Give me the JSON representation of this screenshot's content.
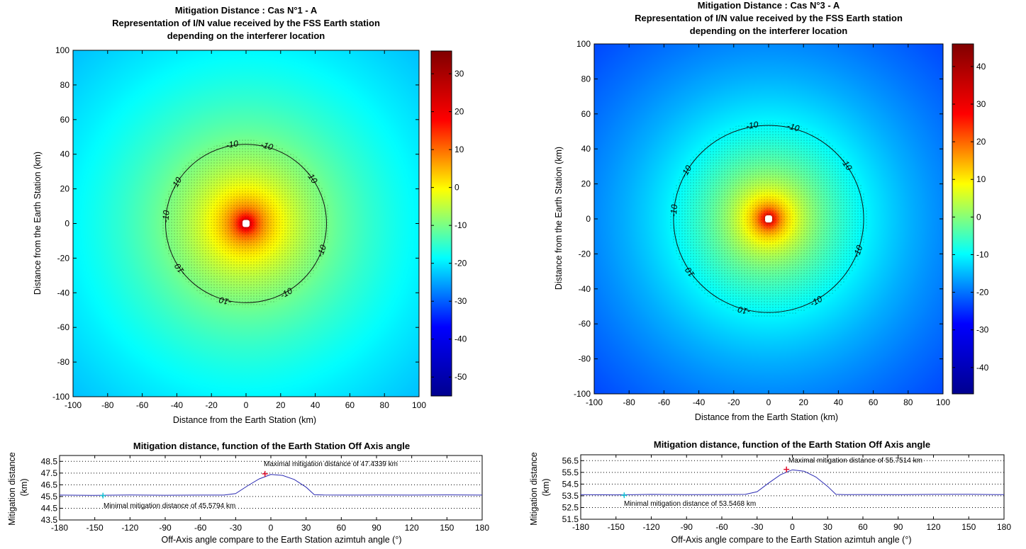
{
  "chart_data": [
    {
      "type": "heatmap",
      "title_lines": [
        "Mitigation Distance   :   Cas N°1 - A",
        "Representation of I/N value received by the FSS Earth station",
        "depending on the interferer location"
      ],
      "xlabel": "Distance from the Earth Station    (km)",
      "ylabel": "Distance from the Earth Station    (km)",
      "xlim": [
        -100,
        100
      ],
      "ylim": [
        -100,
        100
      ],
      "xticks": [
        -100,
        -80,
        -60,
        -40,
        -20,
        0,
        20,
        40,
        60,
        80,
        100
      ],
      "yticks": [
        100,
        80,
        60,
        40,
        20,
        0,
        -20,
        -40,
        -60,
        -80,
        -100
      ],
      "center_value": 36,
      "edge_value": -55,
      "contour_level": -10,
      "contour_label": "-10",
      "contour_radius_km": 46.5,
      "colorbar_ticks": [
        30,
        20,
        10,
        0,
        -10,
        -20,
        -30,
        -40,
        -50
      ],
      "colorbar_range": [
        -55,
        36
      ],
      "colormap": [
        "#00008f",
        "#0000ff",
        "#00ffff",
        "#ffff00",
        "#ff0000",
        "#800000"
      ]
    },
    {
      "type": "heatmap",
      "title_lines": [
        "Mitigation Distance   :   Cas N°3 - A",
        "Representation of I/N value received by the FSS Earth station",
        "depending on the interferer location"
      ],
      "xlabel": "Distance from the Earth Station    (km)",
      "ylabel": "Distance from the Earth Station    (km)",
      "xlim": [
        -100,
        100
      ],
      "ylim": [
        -100,
        100
      ],
      "xticks": [
        -100,
        -80,
        -60,
        -40,
        -20,
        0,
        20,
        40,
        60,
        80,
        100
      ],
      "yticks": [
        100,
        80,
        60,
        40,
        20,
        0,
        -20,
        -40,
        -60,
        -80,
        -100
      ],
      "center_value": 46,
      "edge_value": -47,
      "contour_level": -10,
      "contour_label": "-10",
      "contour_radius_km": 54.5,
      "colorbar_ticks": [
        40,
        30,
        20,
        10,
        0,
        -10,
        -20,
        -30,
        -40
      ],
      "colorbar_range": [
        -47,
        46
      ],
      "colormap": [
        "#00008f",
        "#0000ff",
        "#00ffff",
        "#ffff00",
        "#ff0000",
        "#800000"
      ]
    },
    {
      "type": "line",
      "title": "Mitigation distance, function of the Earth Station Off Axis angle",
      "xlabel": "Off-Axis angle compare to the Earth Station azimtuh angle (°)",
      "ylabel_lines": [
        "Mitigation distance",
        "(km)"
      ],
      "xlim": [
        -180,
        180
      ],
      "ylim": [
        43.5,
        49
      ],
      "xticks": [
        -180,
        -150,
        -120,
        -90,
        -60,
        -30,
        0,
        30,
        60,
        90,
        120,
        150,
        180
      ],
      "yticks": [
        48.5,
        47.5,
        46.5,
        45.5,
        44.5,
        43.5
      ],
      "grid": true,
      "series": [
        {
          "x": [
            -180,
            -150,
            -120,
            -90,
            -60,
            -40,
            -30,
            -20,
            -10,
            0,
            10,
            20,
            30,
            37,
            45,
            60,
            90,
            120,
            150,
            180
          ],
          "y": [
            45.62,
            45.6,
            45.63,
            45.61,
            45.62,
            45.62,
            45.75,
            46.4,
            47.0,
            47.38,
            47.3,
            46.95,
            46.3,
            45.65,
            45.63,
            45.62,
            45.63,
            45.62,
            45.64,
            45.62
          ],
          "color": "#2b2bb3"
        }
      ],
      "max_marker": {
        "x": -5,
        "y": 47.4339,
        "color": "#e0102f"
      },
      "min_marker": {
        "x": -143,
        "y": 45.5794,
        "color": "#18c8d8"
      },
      "max_annotation": "Maximal mitigation distance of 47.4339 km",
      "min_annotation": "Minimal mitigation distance of 45.5794 km"
    },
    {
      "type": "line",
      "title": "Mitigation distance, function of the Earth Station Off Axis angle",
      "xlabel": "Off-Axis angle compare to the Earth Station azimtuh angle (°)",
      "ylabel_lines": [
        "Mitigation distance",
        "(km)"
      ],
      "xlim": [
        -180,
        180
      ],
      "ylim": [
        51.5,
        57
      ],
      "xticks": [
        -180,
        -150,
        -120,
        -90,
        -60,
        -30,
        0,
        30,
        60,
        90,
        120,
        150,
        180
      ],
      "yticks": [
        56.5,
        55.5,
        54.5,
        53.5,
        52.5,
        51.5
      ],
      "grid": true,
      "series": [
        {
          "x": [
            -180,
            -150,
            -120,
            -90,
            -60,
            -40,
            -30,
            -20,
            -10,
            0,
            10,
            20,
            30,
            37,
            45,
            60,
            90,
            120,
            150,
            180
          ],
          "y": [
            53.6,
            53.58,
            53.62,
            53.6,
            53.61,
            53.62,
            53.85,
            54.6,
            55.3,
            55.72,
            55.6,
            55.1,
            54.3,
            53.62,
            53.6,
            53.61,
            53.6,
            53.62,
            53.63,
            53.6
          ],
          "color": "#2b2bb3"
        }
      ],
      "max_marker": {
        "x": -5,
        "y": 55.7514,
        "color": "#e0102f"
      },
      "min_marker": {
        "x": -143,
        "y": 53.5468,
        "color": "#18c8d8"
      },
      "max_annotation": "Maximal mitigation distance of 55.7514 km",
      "min_annotation": "Minimal mitigation distance of 53.5468 km"
    }
  ]
}
